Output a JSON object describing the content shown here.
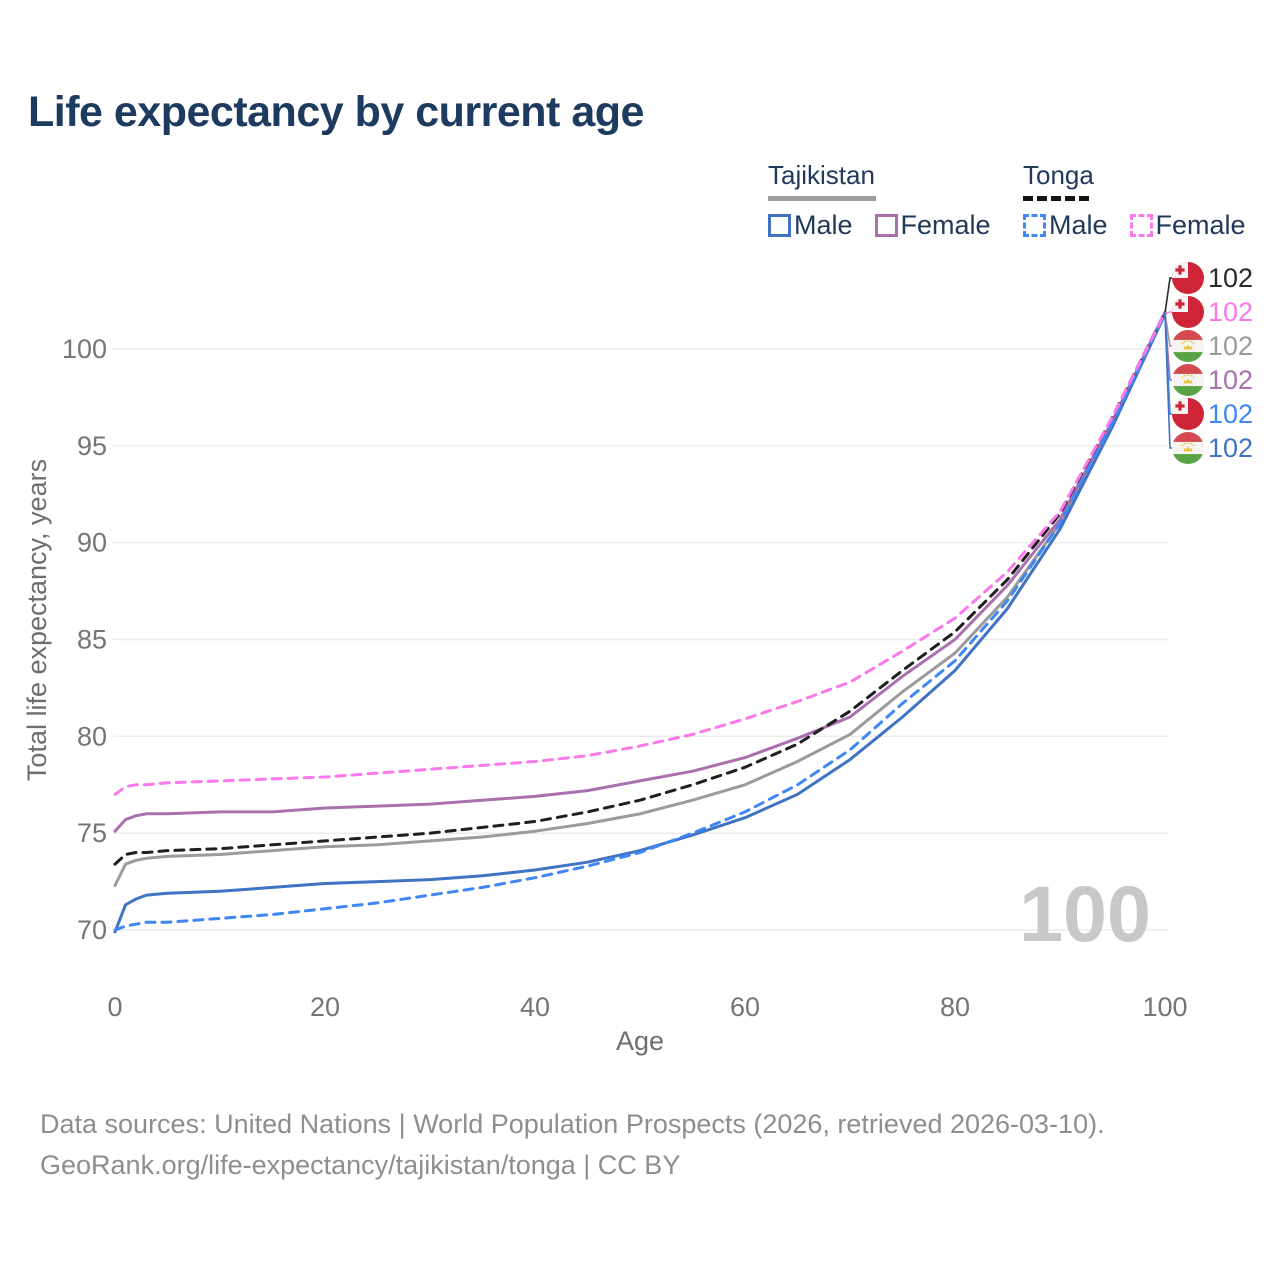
{
  "colors": {
    "title": "#1d3a5f",
    "legend_text": "#22395c",
    "tick": "#757575",
    "axis_title": "#6e6e6e",
    "grid": "#ececec",
    "watermark": "#c8c8c8",
    "footer": "#8e8e8e",
    "background": "#ffffff"
  },
  "legend": {
    "groups": [
      {
        "name": "Tajikistan",
        "line_style": "solid",
        "line_color": "#9e9e9e",
        "items": [
          {
            "label": "Male",
            "color": "#4073c4",
            "dashed": false
          },
          {
            "label": "Female",
            "color": "#aa6fad",
            "dashed": false
          }
        ]
      },
      {
        "name": "Tonga",
        "line_style": "dashed",
        "line_color": "#141414",
        "items": [
          {
            "label": "Male",
            "color": "#3f87f5",
            "dashed": true
          },
          {
            "label": "Female",
            "color": "#fb78ea",
            "dashed": true
          }
        ]
      }
    ]
  },
  "chart_data": {
    "type": "line",
    "title": "Life expectancy by current age",
    "xlabel": "Age",
    "ylabel": "Total life expectancy, years",
    "x_ticks": [
      0,
      20,
      40,
      60,
      80,
      100
    ],
    "y_ticks": [
      70,
      75,
      80,
      85,
      90,
      95,
      100
    ],
    "xlim": [
      0,
      100
    ],
    "ylim": [
      69.5,
      103
    ],
    "grid": "horizontal-only",
    "legend_position": "top-right",
    "watermark_age_label": "100",
    "x": [
      0,
      1,
      2,
      3,
      5,
      10,
      15,
      20,
      25,
      30,
      35,
      40,
      45,
      50,
      55,
      60,
      65,
      70,
      75,
      80,
      85,
      90,
      95,
      100
    ],
    "series": [
      {
        "name": "Tajikistan Total",
        "country": "Tajikistan",
        "sex": "Total",
        "color": "#9b9b9b",
        "dashed": false,
        "flag": "tajikistan",
        "values": [
          72.3,
          73.4,
          73.6,
          73.7,
          73.8,
          73.9,
          74.1,
          74.3,
          74.4,
          74.6,
          74.8,
          75.1,
          75.5,
          76.0,
          76.7,
          77.5,
          78.7,
          80.1,
          82.3,
          84.3,
          87.2,
          91.0,
          96.2,
          101.8
        ]
      },
      {
        "name": "Tajikistan Female",
        "country": "Tajikistan",
        "sex": "Female",
        "color": "#aa6fad",
        "dashed": false,
        "flag": "tajikistan",
        "values": [
          75.1,
          75.7,
          75.9,
          76.0,
          76.0,
          76.1,
          76.1,
          76.3,
          76.4,
          76.5,
          76.7,
          76.9,
          77.2,
          77.7,
          78.2,
          78.9,
          79.9,
          81.0,
          83.1,
          85.0,
          87.8,
          91.2,
          96.3,
          101.9
        ]
      },
      {
        "name": "Tajikistan Male",
        "country": "Tajikistan",
        "sex": "Male",
        "color": "#4073c4",
        "dashed": false,
        "flag": "tajikistan",
        "values": [
          69.9,
          71.3,
          71.6,
          71.8,
          71.9,
          72.0,
          72.2,
          72.4,
          72.5,
          72.6,
          72.8,
          73.1,
          73.5,
          74.1,
          74.9,
          75.8,
          77.0,
          78.8,
          81.0,
          83.4,
          86.6,
          90.7,
          96.0,
          101.8
        ]
      },
      {
        "name": "Tonga Total",
        "country": "Tonga",
        "sex": "Total",
        "color": "#1f1f1f",
        "dashed": true,
        "flag": "tonga",
        "values": [
          73.4,
          73.9,
          74.0,
          74.0,
          74.1,
          74.2,
          74.4,
          74.6,
          74.8,
          75.0,
          75.3,
          75.6,
          76.1,
          76.7,
          77.5,
          78.4,
          79.6,
          81.3,
          83.4,
          85.4,
          88.1,
          91.5,
          96.5,
          101.9
        ]
      },
      {
        "name": "Tonga Male",
        "country": "Tonga",
        "sex": "Male",
        "color": "#3f87f5",
        "dashed": true,
        "flag": "tonga",
        "values": [
          70.0,
          70.2,
          70.3,
          70.4,
          70.4,
          70.6,
          70.8,
          71.1,
          71.4,
          71.8,
          72.2,
          72.7,
          73.3,
          74.0,
          75.0,
          76.1,
          77.5,
          79.3,
          81.7,
          83.9,
          87.0,
          91.0,
          96.2,
          101.8
        ]
      },
      {
        "name": "Tonga Female",
        "country": "Tonga",
        "sex": "Female",
        "color": "#fb78ea",
        "dashed": true,
        "flag": "tonga",
        "values": [
          77.0,
          77.4,
          77.5,
          77.5,
          77.6,
          77.7,
          77.8,
          77.9,
          78.1,
          78.3,
          78.5,
          78.7,
          79.0,
          79.5,
          80.1,
          80.9,
          81.8,
          82.8,
          84.4,
          86.1,
          88.5,
          91.6,
          96.5,
          101.9
        ]
      }
    ],
    "end_labels": [
      {
        "series": "Tonga Total",
        "text": "102",
        "color": "#2a2a2a",
        "flag": "tonga"
      },
      {
        "series": "Tonga Female",
        "text": "102",
        "color": "#fb78ea",
        "flag": "tonga"
      },
      {
        "series": "Tajikistan Total",
        "text": "102",
        "color": "#9b9b9b",
        "flag": "tajikistan"
      },
      {
        "series": "Tajikistan Female",
        "text": "102",
        "color": "#aa6fad",
        "flag": "tajikistan"
      },
      {
        "series": "Tonga Male",
        "text": "102",
        "color": "#3f87f5",
        "flag": "tonga"
      },
      {
        "series": "Tajikistan Male",
        "text": "102",
        "color": "#4073c4",
        "flag": "tajikistan"
      }
    ]
  },
  "footer": {
    "line1": "Data sources: United Nations | World Population Prospects (2026, retrieved 2026-03-10).",
    "line2": "GeoRank.org/life-expectancy/tajikistan/tonga | CC BY"
  }
}
